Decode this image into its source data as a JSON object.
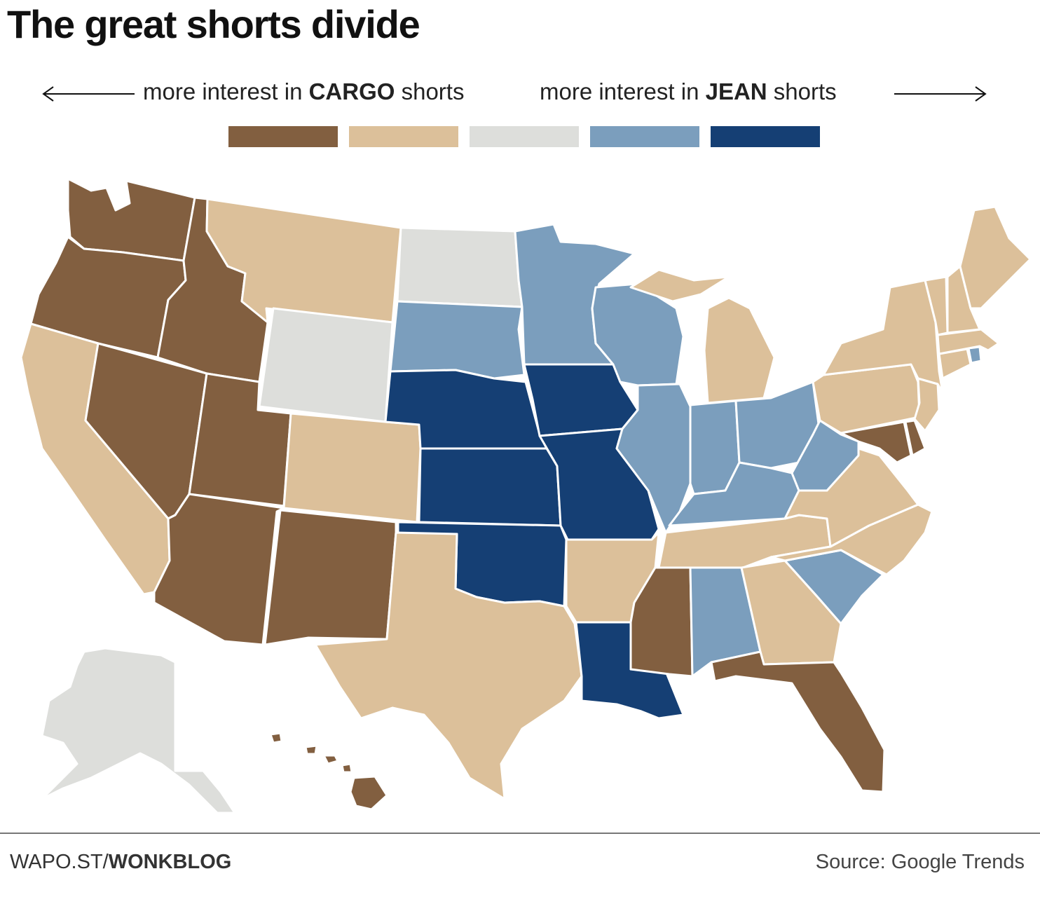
{
  "title": "The great shorts divide",
  "legend": {
    "left_prefix": "more interest in ",
    "left_keyword": "CARGO",
    "left_suffix": " shorts",
    "right_prefix": "more interest in ",
    "right_keyword": "JEAN",
    "right_suffix": " shorts",
    "scale": [
      {
        "level": "cargo-strong",
        "color": "#825f40"
      },
      {
        "level": "cargo-mild",
        "color": "#dcc09a"
      },
      {
        "level": "neutral",
        "color": "#dddedb"
      },
      {
        "level": "jean-mild",
        "color": "#7b9ebd"
      },
      {
        "level": "jean-strong",
        "color": "#153f74"
      }
    ]
  },
  "chart_data": {
    "type": "choropleth",
    "categories": [
      "cargo-strong",
      "cargo-mild",
      "neutral",
      "jean-mild",
      "jean-strong"
    ],
    "regions": {
      "WA": "cargo-strong",
      "OR": "cargo-strong",
      "ID": "cargo-strong",
      "NV": "cargo-strong",
      "UT": "cargo-strong",
      "AZ": "cargo-strong",
      "NM": "cargo-strong",
      "MS": "cargo-strong",
      "FL": "cargo-strong",
      "MD": "cargo-strong",
      "DE": "cargo-strong",
      "HI": "cargo-strong",
      "CA": "cargo-mild",
      "MT": "cargo-mild",
      "CO": "cargo-mild",
      "TX": "cargo-mild",
      "AR": "cargo-mild",
      "MI": "cargo-mild",
      "TN": "cargo-mild",
      "GA": "cargo-mild",
      "NC": "cargo-mild",
      "VA": "cargo-mild",
      "PA": "cargo-mild",
      "NY": "cargo-mild",
      "NJ": "cargo-mild",
      "CT": "cargo-mild",
      "MA": "cargo-mild",
      "VT": "cargo-mild",
      "NH": "cargo-mild",
      "ME": "cargo-mild",
      "ND": "neutral",
      "WY": "neutral",
      "AK": "neutral",
      "SD": "jean-mild",
      "MN": "jean-mild",
      "WI": "jean-mild",
      "IL": "jean-mild",
      "IN": "jean-mild",
      "OH": "jean-mild",
      "KY": "jean-mild",
      "WV": "jean-mild",
      "AL": "jean-mild",
      "SC": "jean-mild",
      "RI": "jean-mild",
      "NE": "jean-strong",
      "IA": "jean-strong",
      "KS": "jean-strong",
      "MO": "jean-strong",
      "OK": "jean-strong",
      "LA": "jean-strong"
    }
  },
  "footer": {
    "site_prefix": "WAPO.ST/",
    "site_section": "WONKBLOG",
    "source": "Source: Google Trends"
  }
}
